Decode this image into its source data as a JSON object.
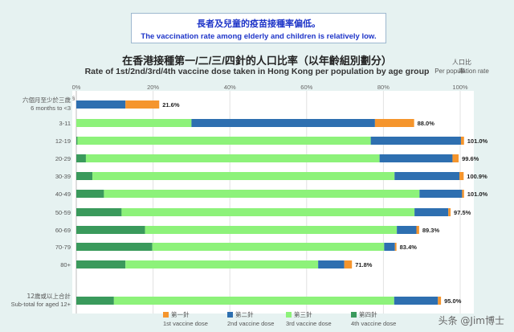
{
  "notice": {
    "line_zh": "長者及兒童的疫苗接種率偏低。",
    "line_en": "The vaccination rate among elderly and children is relatively low."
  },
  "title_zh": "在香港接種第一/二/三/四針的人口比率（以年齡組別劃分）",
  "title_en": "Rate of 1st/2nd/3rd/4th vaccine dose taken in Hong Kong per population by age group",
  "unit_zh": "人口比率",
  "unit_en": "Per population rate",
  "watermark": "头条 @Jim博士",
  "chart_data": {
    "type": "bar",
    "orientation": "horizontal",
    "stacked": true,
    "xlim": [
      0,
      100
    ],
    "x_ticks": [
      "0%",
      "20%",
      "40%",
      "60%",
      "80%",
      "100%"
    ],
    "categories": [
      {
        "zh": "六個月至少於三歲",
        "en": "6 months to <3",
        "note": "§"
      },
      {
        "zh": "",
        "en": "3-11",
        "note": ""
      },
      {
        "zh": "",
        "en": "12-19",
        "note": ""
      },
      {
        "zh": "",
        "en": "20-29",
        "note": ""
      },
      {
        "zh": "",
        "en": "30-39",
        "note": ""
      },
      {
        "zh": "",
        "en": "40-49",
        "note": ""
      },
      {
        "zh": "",
        "en": "50-59",
        "note": ""
      },
      {
        "zh": "",
        "en": "60-69",
        "note": ""
      },
      {
        "zh": "",
        "en": "70-79",
        "note": ""
      },
      {
        "zh": "",
        "en": "80+",
        "note": ""
      },
      {
        "zh": "12歲或以上合計",
        "en": "Sub-total for aged 12+",
        "note": ""
      }
    ],
    "series": [
      {
        "name_zh": "第四針",
        "name_en": "4th vaccine dose",
        "color": "#3a9a5c",
        "values": [
          0,
          0,
          0.3,
          2.5,
          4.2,
          7.2,
          11.8,
          17.9,
          19.8,
          12.8,
          9.8
        ]
      },
      {
        "name_zh": "第三針",
        "name_en": "3rd vaccine dose",
        "color": "#8df27a",
        "values": [
          0,
          30.0,
          76.4,
          76.5,
          78.7,
          82.2,
          76.3,
          65.6,
          60.4,
          50.2,
          73.0
        ]
      },
      {
        "name_zh": "第二針",
        "name_en": "2nd vaccine dose",
        "color": "#2e6fb0",
        "values": [
          12.8,
          47.8,
          23.5,
          19.0,
          16.9,
          11.1,
          8.8,
          5.1,
          2.8,
          6.8,
          11.4
        ]
      },
      {
        "name_zh": "第一針",
        "name_en": "1st vaccine dose",
        "color": "#f5952d",
        "values": [
          8.8,
          10.2,
          0.8,
          1.6,
          1.1,
          0.5,
          0.6,
          0.7,
          0.4,
          2.0,
          0.8
        ]
      }
    ],
    "totals": [
      "21.6%",
      "88.0%",
      "101.0%",
      "99.6%",
      "100.9%",
      "101.0%",
      "97.5%",
      "89.3%",
      "83.4%",
      "71.8%",
      "95.0%"
    ],
    "legend_order": [
      3,
      2,
      1,
      0
    ],
    "legend_position": "bottom",
    "grid": true
  }
}
